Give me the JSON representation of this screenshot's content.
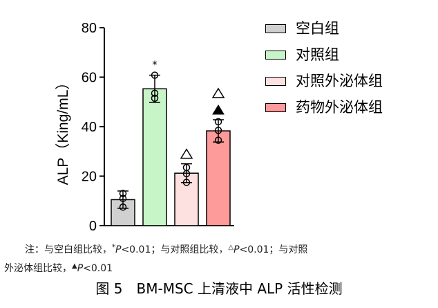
{
  "chart_data": {
    "type": "bar",
    "ylabel": "ALP（King/mL）",
    "xlabel": "",
    "ylim": [
      0,
      80
    ],
    "yticks": [
      "0",
      "20",
      "40",
      "60",
      "80"
    ],
    "grid": false,
    "legend_position": "right",
    "series": [
      {
        "name": "空白组",
        "value": 10.5,
        "error": 3.5,
        "points": [
          13,
          11,
          7.5
        ],
        "color": "#d0d0d0",
        "marker": ""
      },
      {
        "name": "对照组",
        "value": 55.3,
        "error": 5.5,
        "points": [
          60.8,
          53.5,
          51.5
        ],
        "color": "#c8f5c8",
        "marker": "*"
      },
      {
        "name": "对照外泌体组",
        "value": 21.2,
        "error": 3.8,
        "points": [
          23.5,
          21.0,
          17.5
        ],
        "color": "#fde0e0",
        "marker": "△"
      },
      {
        "name": "药物外泌体组",
        "value": 38.3,
        "error": 4.5,
        "points": [
          42.0,
          38.5,
          34.5
        ],
        "color": "#fd9a9a",
        "marker": "△▲"
      }
    ]
  },
  "note": {
    "line1_a": "注：与空白组比较，",
    "sym1": "*",
    "p1": "P",
    "v1": "<0.01；与对照组比较，",
    "sym2": "△",
    "p2": "P",
    "v2": "<0.01；与对照",
    "line2_a": "外泌体组比较，",
    "sym3": "▲",
    "p3": "P",
    "v3": "<0.01"
  },
  "caption": "图 5　BM-MSC 上清液中 ALP 活性检测"
}
